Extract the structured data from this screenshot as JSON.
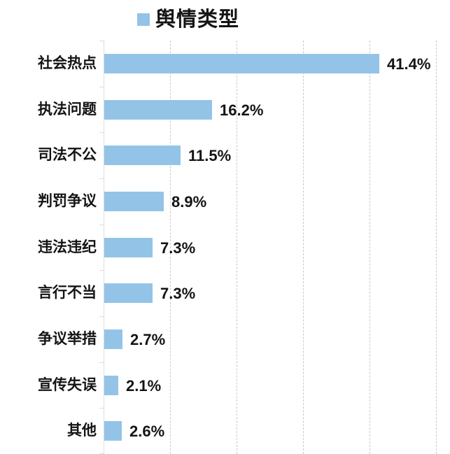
{
  "legend": {
    "label": "舆情类型",
    "marker_icon": "legend-square-icon"
  },
  "chart_data": {
    "type": "bar",
    "orientation": "horizontal",
    "title": "舆情类型",
    "categories": [
      "社会热点",
      "执法问题",
      "司法不公",
      "判罚争议",
      "违法违纪",
      "言行不当",
      "争议举措",
      "宣传失误",
      "其他"
    ],
    "values": [
      41.4,
      16.2,
      11.5,
      8.9,
      7.3,
      7.3,
      2.7,
      2.1,
      2.6
    ],
    "labels": [
      "41.4%",
      "16.2%",
      "11.5%",
      "8.9%",
      "7.3%",
      "7.3%",
      "2.7%",
      "2.1%",
      "2.6%"
    ],
    "xlabel": "",
    "ylabel": "",
    "xlim": [
      0,
      52
    ],
    "gridlines_pct": [
      10,
      20,
      30,
      40,
      50
    ],
    "grid": "vertical-dashed",
    "legend_position": "top",
    "colors": {
      "bar": "#93C4E7",
      "axis": "#DDDDDD",
      "gridline": "#C9C9C9",
      "text": "#141414",
      "background": "#FFFFFF"
    }
  }
}
